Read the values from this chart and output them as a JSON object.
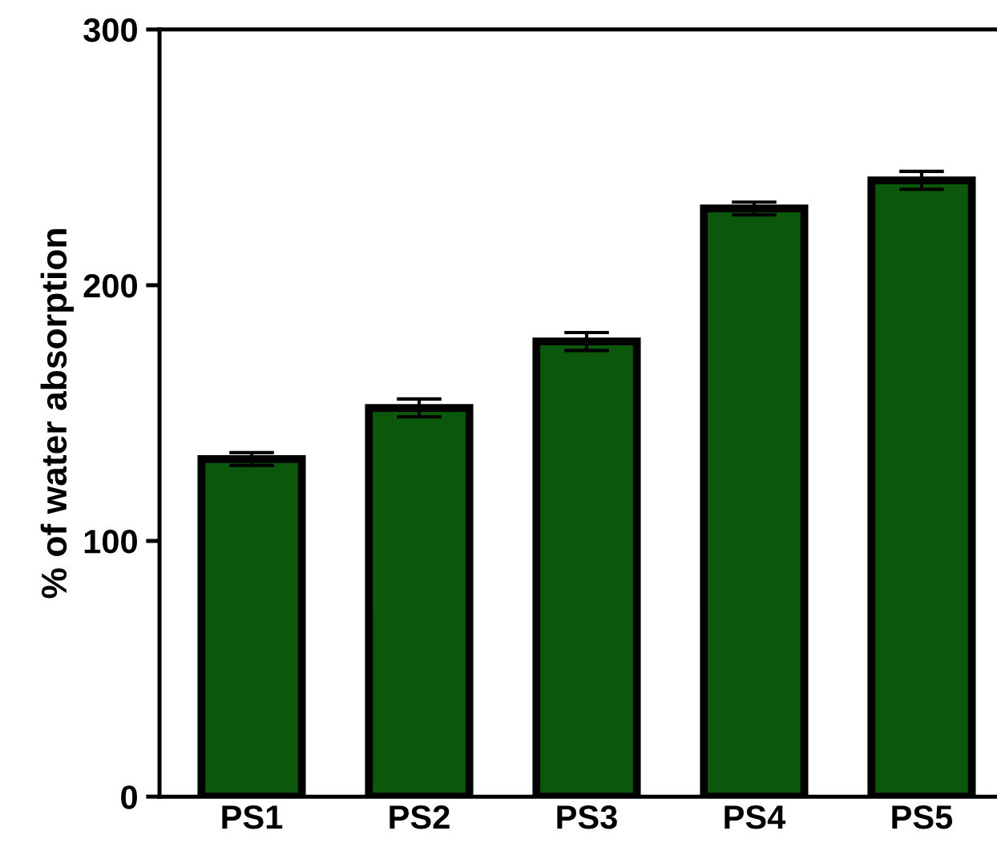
{
  "chart_data": {
    "type": "bar",
    "ylabel": "% of water absorption",
    "categories": [
      "PS1",
      "PS2",
      "PS3",
      "PS4",
      "PS5"
    ],
    "values": [
      132,
      152,
      178,
      230,
      241
    ],
    "errors": [
      2.5,
      3.5,
      3.5,
      2.5,
      3.5
    ],
    "color": "#0b570b",
    "ylim": [
      0,
      300
    ],
    "yticks": [
      0,
      100,
      200,
      300
    ],
    "grid": false
  }
}
